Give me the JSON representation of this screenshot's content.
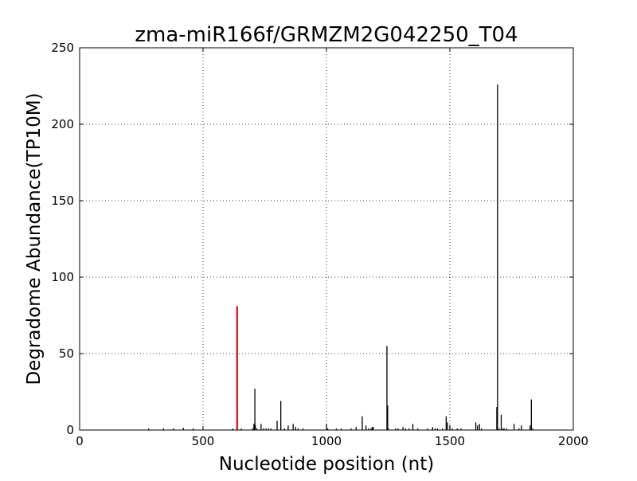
{
  "chart_data": {
    "type": "bar",
    "title": "zma-miR166f/GRMZM2G042250_T04",
    "xlabel": "Nucleotide position (nt)",
    "ylabel": "Degradome Abundance(TP10M)",
    "xlim": [
      0,
      2000
    ],
    "ylim": [
      0,
      250
    ],
    "xticks": [
      0,
      500,
      1000,
      1500,
      2000
    ],
    "yticks": [
      0,
      50,
      100,
      150,
      200,
      250
    ],
    "xtick_labels": [
      "0",
      "500",
      "1000",
      "1500",
      "2000"
    ],
    "ytick_labels": [
      "0",
      "50",
      "100",
      "150",
      "200",
      "250"
    ],
    "grid": true,
    "series": [
      {
        "color": "#000000",
        "points": [
          [
            280,
            1
          ],
          [
            340,
            1
          ],
          [
            380,
            1
          ],
          [
            420,
            1.5
          ],
          [
            460,
            1
          ],
          [
            620,
            1
          ],
          [
            640,
            15
          ],
          [
            655,
            1
          ],
          [
            700,
            1
          ],
          [
            706,
            4
          ],
          [
            710,
            27
          ],
          [
            712,
            3
          ],
          [
            718,
            1
          ],
          [
            735,
            4
          ],
          [
            745,
            1
          ],
          [
            755,
            1
          ],
          [
            765,
            1
          ],
          [
            775,
            1
          ],
          [
            800,
            6
          ],
          [
            815,
            19
          ],
          [
            830,
            1
          ],
          [
            845,
            3
          ],
          [
            865,
            4
          ],
          [
            875,
            2
          ],
          [
            885,
            1
          ],
          [
            905,
            1
          ],
          [
            1000,
            4
          ],
          [
            1005,
            1
          ],
          [
            1040,
            1
          ],
          [
            1060,
            1
          ],
          [
            1100,
            1
          ],
          [
            1120,
            2
          ],
          [
            1145,
            9
          ],
          [
            1160,
            3
          ],
          [
            1170,
            1
          ],
          [
            1180,
            1
          ],
          [
            1185,
            2
          ],
          [
            1190,
            2
          ],
          [
            1245,
            55
          ],
          [
            1248,
            16
          ],
          [
            1250,
            1
          ],
          [
            1280,
            1
          ],
          [
            1290,
            1
          ],
          [
            1310,
            2
          ],
          [
            1320,
            1
          ],
          [
            1335,
            1
          ],
          [
            1350,
            4
          ],
          [
            1370,
            1
          ],
          [
            1410,
            1
          ],
          [
            1430,
            2
          ],
          [
            1440,
            1
          ],
          [
            1450,
            1
          ],
          [
            1470,
            1
          ],
          [
            1485,
            9
          ],
          [
            1490,
            5
          ],
          [
            1500,
            3
          ],
          [
            1510,
            1
          ],
          [
            1530,
            1
          ],
          [
            1545,
            1
          ],
          [
            1605,
            5
          ],
          [
            1612,
            3
          ],
          [
            1620,
            4
          ],
          [
            1628,
            1
          ],
          [
            1690,
            15
          ],
          [
            1693,
            226
          ],
          [
            1700,
            1
          ],
          [
            1708,
            10
          ],
          [
            1715,
            1
          ],
          [
            1720,
            1
          ],
          [
            1730,
            1
          ],
          [
            1760,
            4
          ],
          [
            1780,
            1
          ],
          [
            1790,
            3
          ],
          [
            1825,
            3
          ],
          [
            1830,
            20
          ],
          [
            1835,
            1
          ]
        ]
      },
      {
        "color": "#d62728",
        "points": [
          [
            638,
            81
          ]
        ]
      }
    ]
  }
}
